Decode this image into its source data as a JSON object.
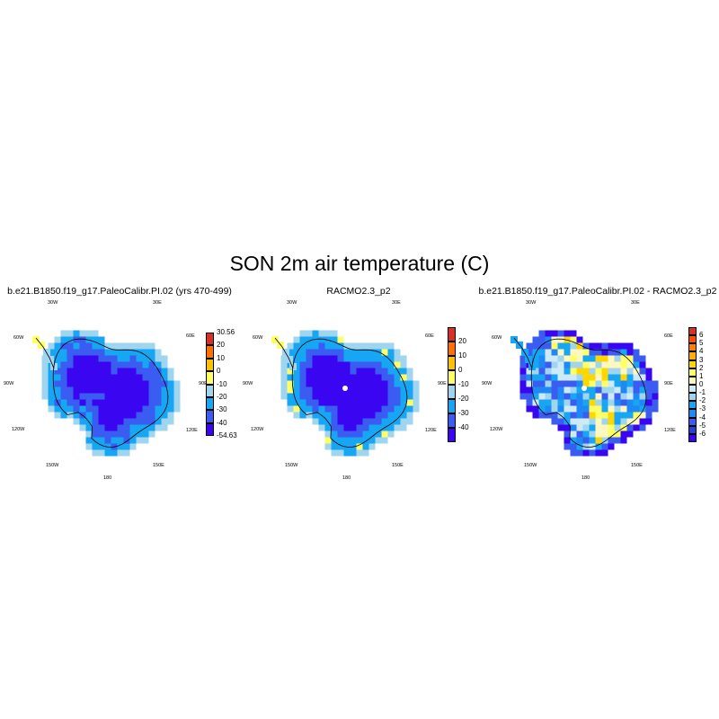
{
  "figure": {
    "title": "SON 2m air temperature (C)"
  },
  "geo_labels": {
    "w30": "30W",
    "e30": "30E",
    "w60": "60W",
    "e60": "60E",
    "w90": "90W",
    "e90": "90E",
    "w120": "120W",
    "e120": "120E",
    "w150": "150W",
    "e150": "150E",
    "s180": "180"
  },
  "panels": [
    {
      "title": "b.e21.B1850.f19_g17.PaleoCalibr.PI.02 (yrs 470-499)",
      "colorbar": {
        "colors": [
          "#3a05f0",
          "#3a5cf0",
          "#17a6f3",
          "#9fd5ee",
          "#ffff66",
          "#ffc000",
          "#ff7000",
          "#d73027"
        ],
        "labels": [
          "-54.63",
          "-40",
          "-30",
          "-20",
          "-10",
          "0",
          "10",
          "20",
          "30.56"
        ]
      }
    },
    {
      "title": "RACMO2.3_p2",
      "colorbar": {
        "colors": [
          "#3a05f0",
          "#3a5cf0",
          "#17a6f3",
          "#9fd5ee",
          "#ffff66",
          "#ffc000",
          "#ff7000",
          "#d73027"
        ],
        "labels": [
          "-40",
          "-30",
          "-20",
          "-10",
          "0",
          "10",
          "20"
        ]
      }
    },
    {
      "title": "b.e21.B1850.f19_g17.PaleoCalibr.PI.02 - RACMO2.3_p2",
      "colorbar": {
        "colors": [
          "#3a05f0",
          "#2a3fd8",
          "#3a5cf0",
          "#1e88f5",
          "#17a6f3",
          "#9fd5ee",
          "#cfeaf7",
          "#fff7c0",
          "#ffff66",
          "#ffd700",
          "#ffb000",
          "#ff8000",
          "#ff5000",
          "#d73027"
        ],
        "labels": [
          "-6",
          "-5",
          "-4",
          "-3",
          "-2",
          "-1",
          "0",
          "1",
          "2",
          "3",
          "4",
          "5",
          "6"
        ]
      }
    }
  ]
}
